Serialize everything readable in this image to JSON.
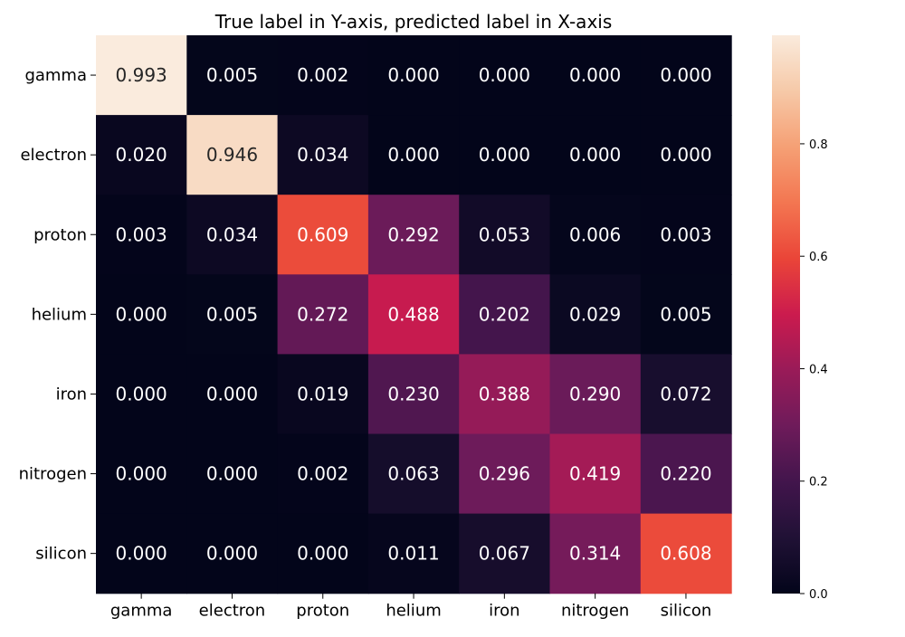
{
  "chart_data": {
    "type": "heatmap",
    "title": "True label in Y-axis, predicted label in X-axis",
    "x_categories": [
      "gamma",
      "electron",
      "proton",
      "helium",
      "iron",
      "nitrogen",
      "silicon"
    ],
    "y_categories": [
      "gamma",
      "electron",
      "proton",
      "helium",
      "iron",
      "nitrogen",
      "silicon"
    ],
    "values": [
      [
        0.993,
        0.005,
        0.002,
        0.0,
        0.0,
        0.0,
        0.0
      ],
      [
        0.02,
        0.946,
        0.034,
        0.0,
        0.0,
        0.0,
        0.0
      ],
      [
        0.003,
        0.034,
        0.609,
        0.292,
        0.053,
        0.006,
        0.003
      ],
      [
        0.0,
        0.005,
        0.272,
        0.488,
        0.202,
        0.029,
        0.005
      ],
      [
        0.0,
        0.0,
        0.019,
        0.23,
        0.388,
        0.29,
        0.072
      ],
      [
        0.0,
        0.0,
        0.002,
        0.063,
        0.296,
        0.419,
        0.22
      ],
      [
        0.0,
        0.0,
        0.0,
        0.011,
        0.067,
        0.314,
        0.608
      ]
    ],
    "value_format": "0.000",
    "colormap": "rocket",
    "colorbar": {
      "range": [
        0.0,
        0.993
      ],
      "ticks": [
        0.0,
        0.2,
        0.4,
        0.6,
        0.8
      ],
      "tick_labels": [
        "0.0",
        "0.2",
        "0.4",
        "0.6",
        "0.8"
      ]
    },
    "grid": false,
    "legend": "colorbar-right"
  }
}
